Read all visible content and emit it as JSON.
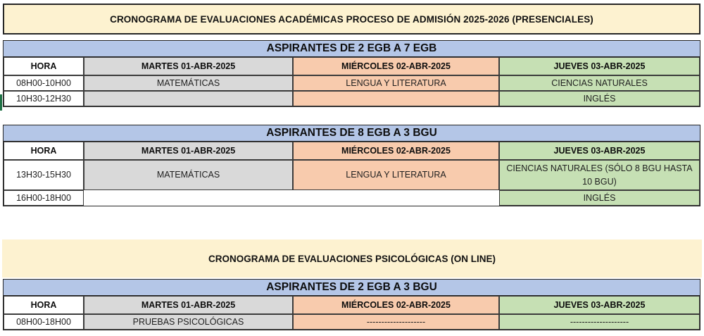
{
  "page": {
    "main_title": "CRONOGRAMA DE EVALUACIONES ACADÉMICAS PROCESO DE ADMISIÓN 2025-2026 (PRESENCIALES)",
    "psych_title": "CRONOGRAMA DE EVALUACIONES PSICOLÓGICAS (ON LINE)"
  },
  "colors": {
    "title_bg": "#fdf2d0",
    "section_band_bg": "#b4c6e7",
    "hora_col_bg": "#ffffff",
    "tuesday_col_bg": "#d9d9d9",
    "wednesday_col_bg": "#f8cbad",
    "thursday_col_bg": "#c6e0b4",
    "border": "#262626"
  },
  "sections": [
    {
      "title": "ASPIRANTES DE 2 EGB A 7 EGB",
      "headers": [
        "HORA",
        "MARTES 01-ABR-2025",
        "MIÉRCOLES 02-ABR-2025",
        "JUEVES 03-ABR-2025"
      ],
      "rows": [
        {
          "cells": [
            "08H00-10H00",
            "MATEMÁTICAS",
            "LENGUA Y LITERATURA",
            "CIENCIAS NATURALES"
          ]
        },
        {
          "cells": [
            "10H30-12H30",
            "",
            "",
            "INGLÉS"
          ]
        }
      ]
    },
    {
      "title": "ASPIRANTES DE 8 EGB A 3 BGU",
      "headers": [
        "HORA",
        "MARTES 01-ABR-2025",
        "MIÉRCOLES 02-ABR-2025",
        "JUEVES 03-ABR-2025"
      ],
      "rows": [
        {
          "cells": [
            "13H30-15H30",
            "MATEMÁTICAS",
            "LENGUA Y LITERATURA",
            "CIENCIAS NATURALES (SÓLO 8 BGU HASTA 10 BGU)"
          ]
        },
        {
          "cells": [
            "16H00-18H00",
            "",
            "",
            "INGLÉS"
          ]
        }
      ]
    },
    {
      "title": "ASPIRANTES DE 2 EGB A 3 BGU",
      "headers": [
        "HORA",
        "MARTES 01-ABR-2025",
        "MIÉRCOLES 02-ABR-2025",
        "JUEVES 03-ABR-2025"
      ],
      "rows": [
        {
          "cells": [
            "08H00-18H00",
            "PRUEBAS PSICOLÓGICAS",
            "--------------------",
            "--------------------"
          ]
        }
      ]
    }
  ]
}
